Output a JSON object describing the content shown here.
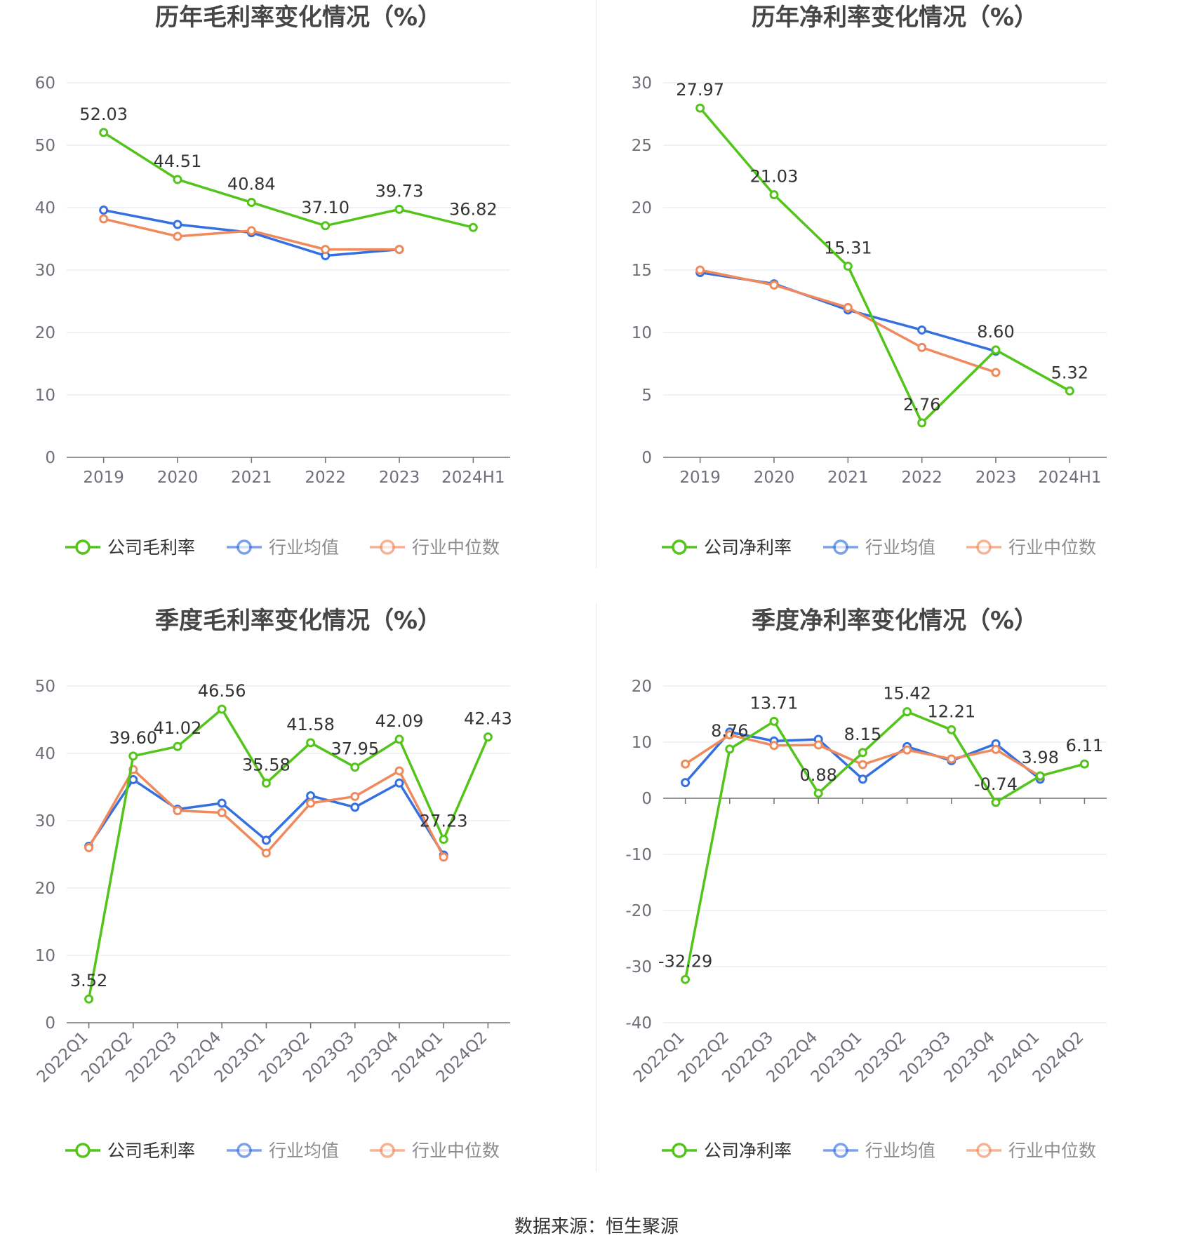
{
  "colors": {
    "company": "#52c41a",
    "avg": "#3470e0",
    "median": "#f08a5d",
    "grid": "#e0e6f1",
    "axis": "#6e7079",
    "label": "#333333",
    "title": "#464646"
  },
  "source": "数据来源：恒生聚源",
  "chart_data": [
    {
      "id": "annual-gross",
      "type": "line",
      "title": "历年毛利率变化情况（%）",
      "categories": [
        "2019",
        "2020",
        "2021",
        "2022",
        "2023",
        "2024H1"
      ],
      "ylim": [
        0,
        60
      ],
      "yticks": [
        0,
        10,
        20,
        30,
        40,
        50,
        60
      ],
      "rotate_labels": false,
      "legend": "bottom",
      "series": [
        {
          "name": "公司毛利率",
          "role": "company",
          "values": [
            52.03,
            44.51,
            40.84,
            37.1,
            39.73,
            36.82
          ],
          "labels": [
            "52.03",
            "44.51",
            "40.84",
            "37.10",
            "39.73",
            "36.82"
          ]
        },
        {
          "name": "行业均值",
          "role": "avg",
          "values": [
            39.6,
            37.3,
            36.0,
            32.3,
            33.3,
            null
          ]
        },
        {
          "name": "行业中位数",
          "role": "median",
          "values": [
            38.2,
            35.4,
            36.3,
            33.3,
            33.3,
            null
          ]
        }
      ]
    },
    {
      "id": "annual-net",
      "type": "line",
      "title": "历年净利率变化情况（%）",
      "categories": [
        "2019",
        "2020",
        "2021",
        "2022",
        "2023",
        "2024H1"
      ],
      "ylim": [
        0,
        30
      ],
      "yticks": [
        0,
        5,
        10,
        15,
        20,
        25,
        30
      ],
      "rotate_labels": false,
      "legend": "bottom",
      "series": [
        {
          "name": "公司净利率",
          "role": "company",
          "values": [
            27.97,
            21.03,
            15.31,
            2.76,
            8.6,
            5.32
          ],
          "labels": [
            "27.97",
            "21.03",
            "15.31",
            "2.76",
            "8.60",
            "5.32"
          ]
        },
        {
          "name": "行业均值",
          "role": "avg",
          "values": [
            14.8,
            13.9,
            11.8,
            10.2,
            8.5,
            null
          ]
        },
        {
          "name": "行业中位数",
          "role": "median",
          "values": [
            15.0,
            13.8,
            12.0,
            8.8,
            6.8,
            null
          ]
        }
      ]
    },
    {
      "id": "quarterly-gross",
      "type": "line",
      "title": "季度毛利率变化情况（%）",
      "categories": [
        "2022Q1",
        "2022Q2",
        "2022Q3",
        "2022Q4",
        "2023Q1",
        "2023Q2",
        "2023Q3",
        "2023Q4",
        "2024Q1",
        "2024Q2"
      ],
      "ylim": [
        0,
        50
      ],
      "yticks": [
        0,
        10,
        20,
        30,
        40,
        50
      ],
      "rotate_labels": true,
      "legend": "bottom",
      "series": [
        {
          "name": "公司毛利率",
          "role": "company",
          "values": [
            3.52,
            39.6,
            41.02,
            46.56,
            35.58,
            41.58,
            37.95,
            42.09,
            27.23,
            42.43
          ],
          "labels": [
            "3.52",
            "39.60",
            "41.02",
            "46.56",
            "35.58",
            "41.58",
            "37.95",
            "42.09",
            "27.23",
            "42.43"
          ]
        },
        {
          "name": "行业均值",
          "role": "avg",
          "values": [
            26.2,
            36.1,
            31.7,
            32.6,
            27.1,
            33.7,
            32.0,
            35.6,
            24.9,
            null
          ]
        },
        {
          "name": "行业中位数",
          "role": "median",
          "values": [
            26.0,
            37.6,
            31.5,
            31.2,
            25.2,
            32.6,
            33.6,
            37.4,
            24.6,
            null
          ]
        }
      ]
    },
    {
      "id": "quarterly-net",
      "type": "line",
      "title": "季度净利率变化情况（%）",
      "categories": [
        "2022Q1",
        "2022Q2",
        "2022Q3",
        "2022Q4",
        "2023Q1",
        "2023Q2",
        "2023Q3",
        "2023Q4",
        "2024Q1",
        "2024Q2"
      ],
      "ylim": [
        -40,
        20
      ],
      "yticks": [
        -40,
        -30,
        -20,
        -10,
        0,
        10,
        20
      ],
      "rotate_labels": true,
      "legend": "bottom",
      "series": [
        {
          "name": "公司净利率",
          "role": "company",
          "values": [
            -32.29,
            8.76,
            13.71,
            0.88,
            8.15,
            15.42,
            12.21,
            -0.74,
            3.98,
            6.11
          ],
          "labels": [
            "-32.29",
            "8.76",
            "13.71",
            "0.88",
            "8.15",
            "15.42",
            "12.21",
            "-0.74",
            "3.98",
            "6.11"
          ]
        },
        {
          "name": "行业均值",
          "role": "avg",
          "values": [
            2.8,
            11.8,
            10.2,
            10.5,
            3.4,
            9.2,
            6.7,
            9.7,
            3.4,
            null
          ]
        },
        {
          "name": "行业中位数",
          "role": "median",
          "values": [
            6.1,
            11.3,
            9.4,
            9.5,
            6.0,
            8.6,
            7.0,
            8.7,
            3.9,
            null
          ]
        }
      ]
    }
  ]
}
